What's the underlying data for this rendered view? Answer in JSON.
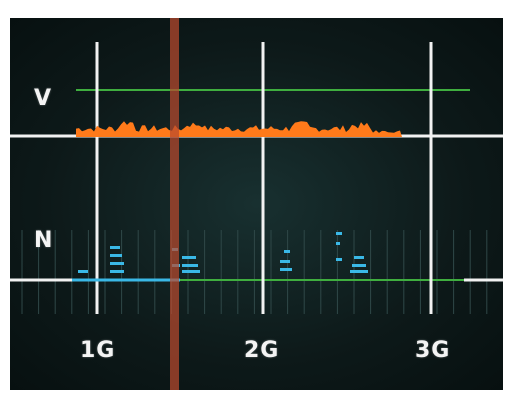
{
  "display": {
    "labels": {
      "v": "V",
      "n": "N"
    },
    "x_ticks": [
      "1G",
      "2G",
      "3G"
    ]
  },
  "colors": {
    "background": "#0c1717",
    "grid_white": "#f2f2f2",
    "reference_green": "#3fae3f",
    "v_trace": "#ff7a1a",
    "n_trace": "#3ab8e6",
    "marker_red": "#b84a2e"
  },
  "icons": {
    "marker": "vertical-marker-bar"
  }
}
